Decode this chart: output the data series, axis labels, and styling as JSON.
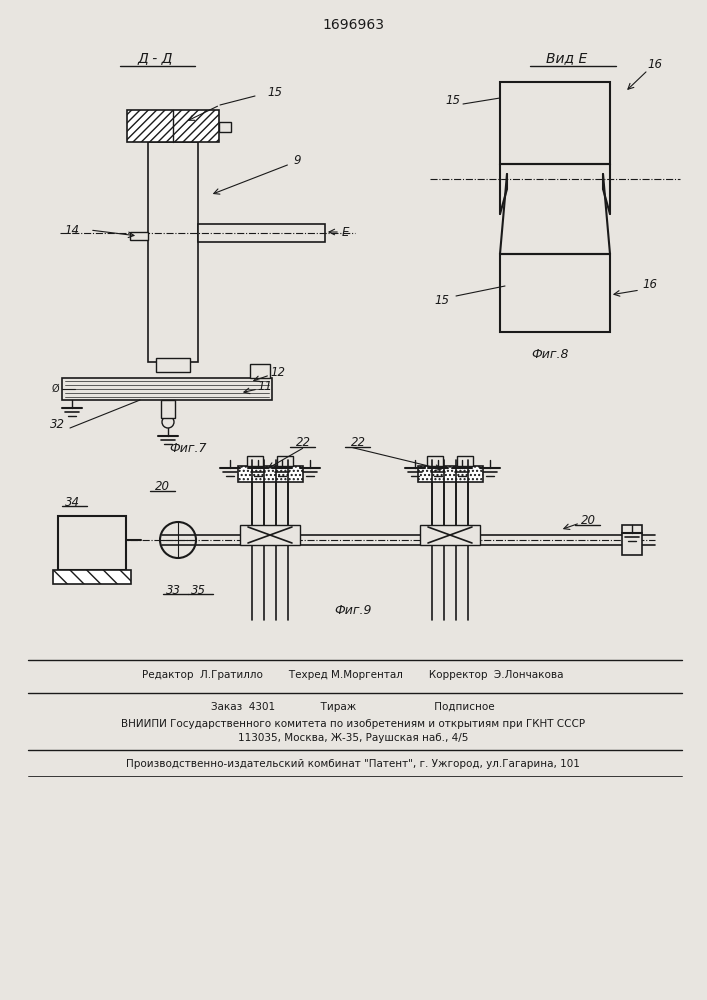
{
  "patent_number": "1696963",
  "fig7_label": "Фиг.7",
  "fig8_label": "Фиг.8",
  "fig9_label": "Фиг.9",
  "section_dd": "Д - Д",
  "view_e": "Вид E",
  "editor_line": "Редактор  Л.Гратилло        Техред М.Моргентал        Корректор  Э.Лончакова",
  "order_line": "Заказ  4301              Тираж                        Подписное",
  "vniip_line": "ВНИИПИ Государственного комитета по изобретениям и открытиям при ГКНТ СССР",
  "address_line": "113035, Москва, Ж-35, Раушская наб., 4/5",
  "plant_line": "Производственно-издательский комбинат \"Патент\", г. Ужгород, ул.Гагарина, 101",
  "bg_color": "#e8e5e0",
  "line_color": "#1a1a1a"
}
